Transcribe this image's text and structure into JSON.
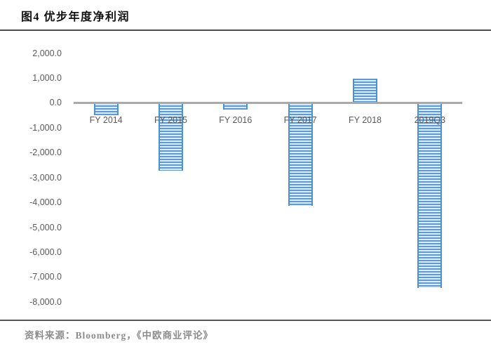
{
  "header": {
    "title": "图4 优步年度净利润"
  },
  "footer": {
    "source_label": "资料来源：Bloomberg，《中欧商业评论》"
  },
  "chart_data": {
    "type": "bar",
    "title": "图4 优步年度净利润",
    "categories": [
      "FY 2014",
      "FY 2015",
      "FY 2016",
      "FY 2017",
      "FY 2018",
      "2019Q3"
    ],
    "values": [
      -490,
      -2720,
      -280,
      -4130,
      980,
      -7450
    ],
    "xlabel": "",
    "ylabel": "",
    "ylim": [
      -8000,
      2000
    ],
    "ytick_values": [
      2000,
      1000,
      0,
      -1000,
      -2000,
      -3000,
      -4000,
      -5000,
      -6000,
      -7000,
      -8000
    ],
    "ytick_labels": [
      "2,000.0",
      "1,000.0",
      "0.0",
      "-1,000.0",
      "-2,000.0",
      "-3,000.0",
      "-4,000.0",
      "-5,000.0",
      "-6,000.0",
      "-7,000.0",
      "-8,000.0"
    ],
    "grid": false,
    "legend": "none",
    "bar_pattern": "horizontal-stripes",
    "colors": {
      "bar_fill": "#5b9bd5",
      "bar_stripe": "#ddebf7",
      "bar_border": "#4d92cf",
      "zero_line": "#a9a9a9",
      "tick_text": "#595959",
      "title_text": "#111111",
      "source_text": "#8c8c8c"
    }
  }
}
